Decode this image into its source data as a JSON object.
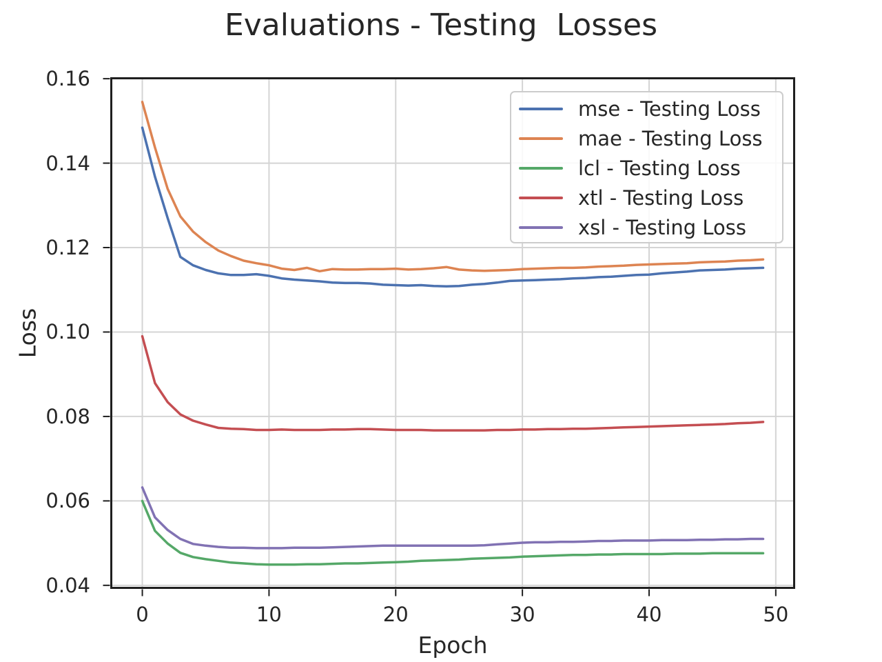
{
  "chart_data": {
    "type": "line",
    "title": "Evaluations - Testing  Losses",
    "xlabel": "Epoch",
    "ylabel": "Loss",
    "xlim": [
      -2.45,
      51.45
    ],
    "ylim": [
      0.0394,
      0.1601
    ],
    "x_ticks": [
      0,
      10,
      20,
      30,
      40,
      50
    ],
    "x_tick_labels": [
      "0",
      "10",
      "20",
      "30",
      "40",
      "50"
    ],
    "y_ticks": [
      0.04,
      0.06,
      0.08,
      0.1,
      0.12,
      0.14,
      0.16
    ],
    "y_tick_labels": [
      "0.04",
      "0.06",
      "0.08",
      "0.10",
      "0.12",
      "0.14",
      "0.16"
    ],
    "grid": true,
    "legend_position": "upper right",
    "x": [
      0,
      1,
      2,
      3,
      4,
      5,
      6,
      7,
      8,
      9,
      10,
      11,
      12,
      13,
      14,
      15,
      16,
      17,
      18,
      19,
      20,
      21,
      22,
      23,
      24,
      25,
      26,
      27,
      28,
      29,
      30,
      31,
      32,
      33,
      34,
      35,
      36,
      37,
      38,
      39,
      40,
      41,
      42,
      43,
      44,
      45,
      46,
      47,
      48,
      49
    ],
    "series": [
      {
        "name": "mse",
        "label": "mse - Testing Loss",
        "color": "#4C72B0",
        "values": [
          0.1484,
          0.1368,
          0.127,
          0.1178,
          0.1158,
          0.1147,
          0.1139,
          0.1135,
          0.1135,
          0.1137,
          0.1133,
          0.1127,
          0.1124,
          0.1122,
          0.112,
          0.1117,
          0.1116,
          0.1116,
          0.1115,
          0.1112,
          0.1111,
          0.111,
          0.1111,
          0.1109,
          0.1108,
          0.1109,
          0.1112,
          0.1114,
          0.1117,
          0.1121,
          0.1122,
          0.1123,
          0.1124,
          0.1125,
          0.1127,
          0.1128,
          0.113,
          0.1131,
          0.1133,
          0.1135,
          0.1136,
          0.1139,
          0.1141,
          0.1143,
          0.1146,
          0.1147,
          0.1148,
          0.115,
          0.1151,
          0.1152
        ]
      },
      {
        "name": "mae",
        "label": "mae - Testing Loss",
        "color": "#DD8452",
        "values": [
          0.1545,
          0.1437,
          0.1339,
          0.1274,
          0.1238,
          0.1213,
          0.1193,
          0.118,
          0.1169,
          0.1163,
          0.1158,
          0.115,
          0.1147,
          0.1152,
          0.1144,
          0.1149,
          0.1148,
          0.1148,
          0.1149,
          0.1149,
          0.115,
          0.1148,
          0.1149,
          0.1151,
          0.1154,
          0.1148,
          0.1146,
          0.1145,
          0.1146,
          0.1147,
          0.1149,
          0.115,
          0.1151,
          0.1152,
          0.1152,
          0.1153,
          0.1155,
          0.1156,
          0.1157,
          0.1159,
          0.116,
          0.1161,
          0.1162,
          0.1163,
          0.1165,
          0.1166,
          0.1167,
          0.1169,
          0.117,
          0.1172
        ]
      },
      {
        "name": "lcl",
        "label": "lcl - Testing Loss",
        "color": "#55A868",
        "values": [
          0.06,
          0.0529,
          0.0499,
          0.0477,
          0.0467,
          0.0462,
          0.0458,
          0.0454,
          0.0452,
          0.045,
          0.0449,
          0.0449,
          0.0449,
          0.045,
          0.045,
          0.0451,
          0.0452,
          0.0452,
          0.0453,
          0.0454,
          0.0455,
          0.0456,
          0.0458,
          0.0459,
          0.046,
          0.0461,
          0.0463,
          0.0464,
          0.0465,
          0.0466,
          0.0468,
          0.0469,
          0.047,
          0.0471,
          0.0472,
          0.0472,
          0.0473,
          0.0473,
          0.0474,
          0.0474,
          0.0474,
          0.0474,
          0.0475,
          0.0475,
          0.0475,
          0.0476,
          0.0476,
          0.0476,
          0.0476,
          0.0476
        ]
      },
      {
        "name": "xtl",
        "label": "xtl - Testing Loss",
        "color": "#C44E52",
        "values": [
          0.099,
          0.0879,
          0.0834,
          0.0805,
          0.079,
          0.0781,
          0.0773,
          0.0771,
          0.077,
          0.0768,
          0.0768,
          0.0769,
          0.0768,
          0.0768,
          0.0768,
          0.0769,
          0.0769,
          0.077,
          0.077,
          0.0769,
          0.0768,
          0.0768,
          0.0768,
          0.0767,
          0.0767,
          0.0767,
          0.0767,
          0.0767,
          0.0768,
          0.0768,
          0.0769,
          0.0769,
          0.077,
          0.077,
          0.0771,
          0.0771,
          0.0772,
          0.0773,
          0.0774,
          0.0775,
          0.0776,
          0.0777,
          0.0778,
          0.0779,
          0.078,
          0.0781,
          0.0782,
          0.0784,
          0.0785,
          0.0787
        ]
      },
      {
        "name": "xsl",
        "label": "xsl - Testing Loss",
        "color": "#8172B3",
        "values": [
          0.0632,
          0.0561,
          0.0531,
          0.051,
          0.0498,
          0.0494,
          0.0491,
          0.0489,
          0.0489,
          0.0488,
          0.0488,
          0.0488,
          0.0489,
          0.0489,
          0.0489,
          0.049,
          0.0491,
          0.0492,
          0.0493,
          0.0494,
          0.0494,
          0.0494,
          0.0494,
          0.0494,
          0.0494,
          0.0494,
          0.0494,
          0.0495,
          0.0497,
          0.0499,
          0.0501,
          0.0502,
          0.0502,
          0.0503,
          0.0503,
          0.0504,
          0.0505,
          0.0505,
          0.0506,
          0.0506,
          0.0506,
          0.0507,
          0.0507,
          0.0507,
          0.0508,
          0.0508,
          0.0509,
          0.0509,
          0.051,
          0.051
        ]
      }
    ],
    "style": {
      "grid_color": "#d4d4d4",
      "spine_color": "#1f1f1f",
      "text_color": "#262626",
      "background": "#ffffff"
    }
  }
}
